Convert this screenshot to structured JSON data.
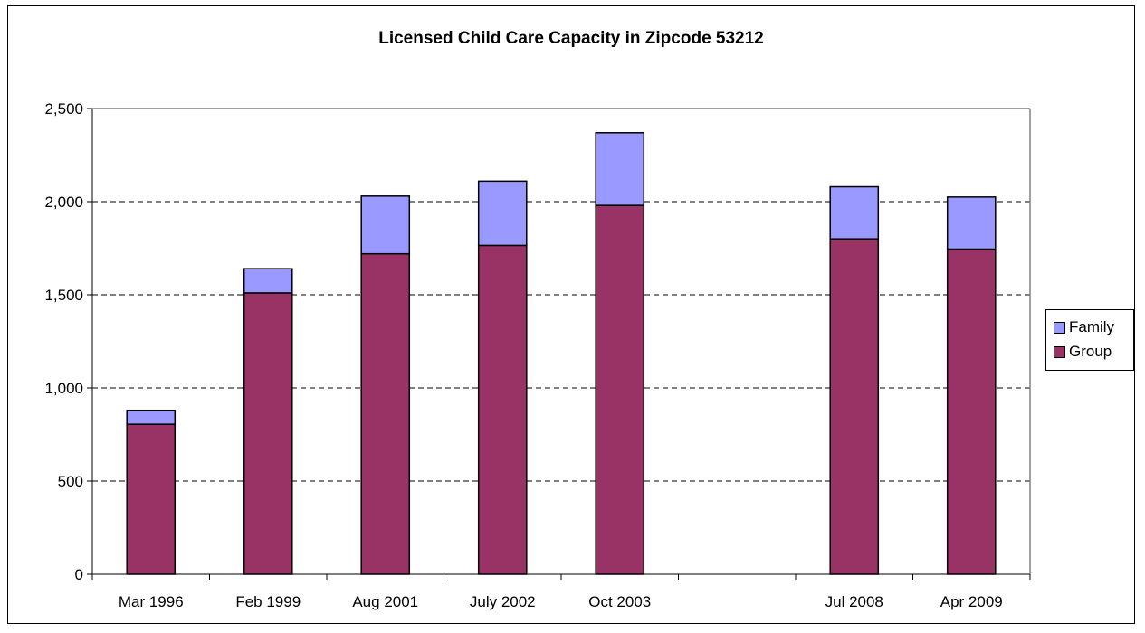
{
  "chart_data": {
    "type": "bar",
    "stacked": true,
    "title": "Licensed Child Care Capacity in Zipcode 53212",
    "xlabel": "",
    "ylabel": "",
    "categories": [
      "Mar 1996",
      "Feb 1999",
      "Aug 2001",
      "July 2002",
      "Oct 2003",
      "",
      "Jul 2008",
      "Apr 2009"
    ],
    "series": [
      {
        "name": "Group",
        "color": "#993366",
        "values": [
          805,
          1510,
          1720,
          1765,
          1980,
          null,
          1800,
          1745
        ]
      },
      {
        "name": "Family",
        "color": "#9999FF",
        "values": [
          75,
          130,
          310,
          345,
          390,
          null,
          280,
          280
        ]
      }
    ],
    "ylim": [
      0,
      2500
    ],
    "yticks": [
      0,
      500,
      1000,
      1500,
      2000,
      2500
    ],
    "ytick_labels": [
      "0",
      "500",
      "1,000",
      "1,500",
      "2,000",
      "2,500"
    ],
    "grid": true,
    "legend_position": "right",
    "legend_order": [
      "Family",
      "Group"
    ]
  }
}
